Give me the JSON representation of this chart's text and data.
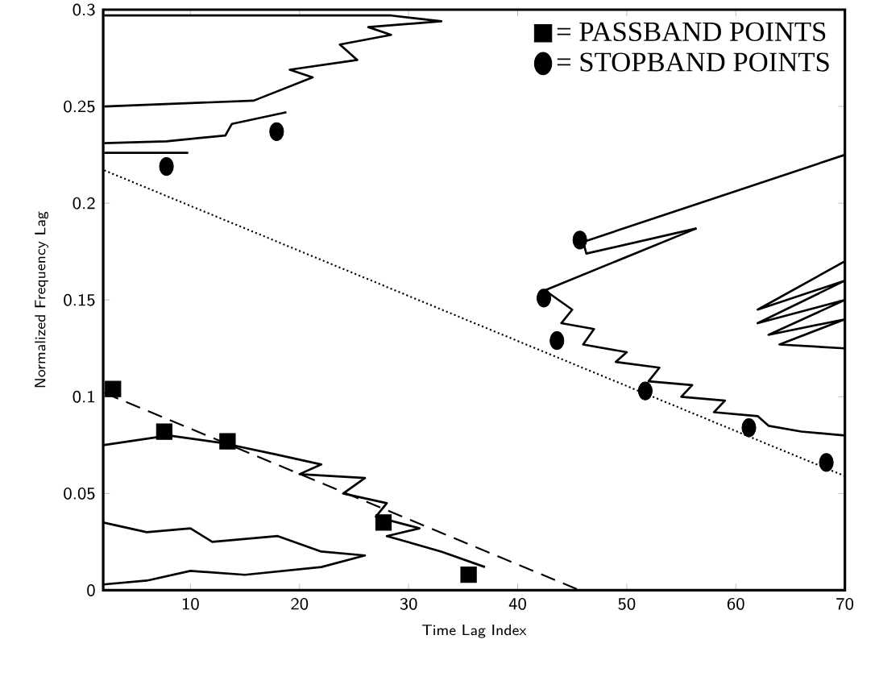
{
  "chart_data": {
    "type": "scatter",
    "xlabel": "Time Lag Index",
    "ylabel": "Normalized Frequency Lag",
    "xlim": [
      2,
      70
    ],
    "ylim": [
      0,
      0.3
    ],
    "xticks": [
      10,
      20,
      30,
      40,
      50,
      60,
      70
    ],
    "yticks": [
      0,
      0.05,
      0.1,
      0.15,
      0.2,
      0.25,
      0.3
    ],
    "legend": "top right",
    "grid": false,
    "series": [
      {
        "name": "= PASSBAND POINTS",
        "marker": "square",
        "color": "#000000",
        "x": [
          2.9,
          7.6,
          13.4,
          27.7,
          35.5
        ],
        "values": [
          0.104,
          0.082,
          0.077,
          0.035,
          0.008
        ]
      },
      {
        "name": "= STOPBAND POINTS",
        "marker": "circle",
        "color": "#000000",
        "x": [
          7.8,
          17.9,
          45.7,
          42.4,
          43.6,
          51.7,
          61.2,
          68.3
        ],
        "values": [
          0.219,
          0.237,
          0.181,
          0.151,
          0.129,
          0.103,
          0.084,
          0.066
        ]
      },
      {
        "type": "line",
        "line_style": "dashed",
        "color": "#000000",
        "x": [
          2.1,
          45.7
        ],
        "values": [
          0.102,
          0
        ]
      },
      {
        "type": "line",
        "line_style": "dotted",
        "color": "#000000",
        "x": [
          2.1,
          70
        ],
        "values": [
          0.217,
          0.059
        ]
      },
      {
        "type": "line",
        "line_style": "solid",
        "color": "#000000",
        "x": [
          2.1,
          15.8,
          21.2,
          19.1,
          25.3,
          23.7,
          28.4,
          26.3,
          33.0,
          28.4,
          2.1
        ],
        "values": [
          0.25,
          0.253,
          0.265,
          0.269,
          0.274,
          0.282,
          0.287,
          0.291,
          0.294,
          0.297,
          0.297
        ]
      },
      {
        "type": "line",
        "line_style": "solid",
        "color": "#000000",
        "x": [
          2.1,
          7.8,
          13.2,
          13.8,
          18.8
        ],
        "values": [
          0.231,
          0.232,
          0.235,
          0.241,
          0.247
        ]
      },
      {
        "type": "line",
        "line_style": "solid",
        "color": "#000000",
        "x": [
          2.1,
          9.8
        ],
        "values": [
          0.226,
          0.226
        ]
      },
      {
        "type": "line",
        "line_style": "solid",
        "color": "#000000",
        "x": [
          56.4,
          46.3,
          46.0,
          70
        ],
        "values": [
          0.187,
          0.174,
          0.18,
          0.225
        ]
      },
      {
        "type": "line",
        "line_style": "solid",
        "color": "#000000",
        "x": [
          56.4,
          42.5,
          45,
          44,
          47,
          46,
          50,
          49,
          53,
          52,
          56,
          55,
          59,
          58,
          62,
          63,
          66,
          70
        ],
        "values": [
          0.187,
          0.155,
          0.145,
          0.138,
          0.135,
          0.127,
          0.123,
          0.118,
          0.115,
          0.108,
          0.106,
          0.1,
          0.098,
          0.092,
          0.09,
          0.085,
          0.082,
          0.08
        ]
      },
      {
        "type": "line",
        "line_style": "solid",
        "color": "#000000",
        "x": [
          70,
          62,
          70,
          62,
          70,
          63,
          70,
          64,
          70
        ],
        "values": [
          0.17,
          0.145,
          0.16,
          0.138,
          0.15,
          0.132,
          0.14,
          0.127,
          0.125
        ]
      },
      {
        "type": "line",
        "line_style": "solid",
        "color": "#000000",
        "x": [
          2,
          8,
          13,
          18,
          22,
          20,
          26,
          24,
          28,
          27,
          31,
          28,
          33,
          37
        ],
        "values": [
          0.075,
          0.08,
          0.076,
          0.07,
          0.065,
          0.06,
          0.058,
          0.05,
          0.045,
          0.038,
          0.032,
          0.028,
          0.02,
          0.012
        ]
      },
      {
        "type": "line",
        "line_style": "solid",
        "color": "#000000",
        "x": [
          2,
          6,
          10,
          12,
          18,
          22,
          26,
          22,
          15,
          10,
          6,
          2
        ],
        "values": [
          0.035,
          0.03,
          0.032,
          0.025,
          0.028,
          0.02,
          0.018,
          0.012,
          0.008,
          0.01,
          0.005,
          0.003
        ]
      }
    ]
  }
}
